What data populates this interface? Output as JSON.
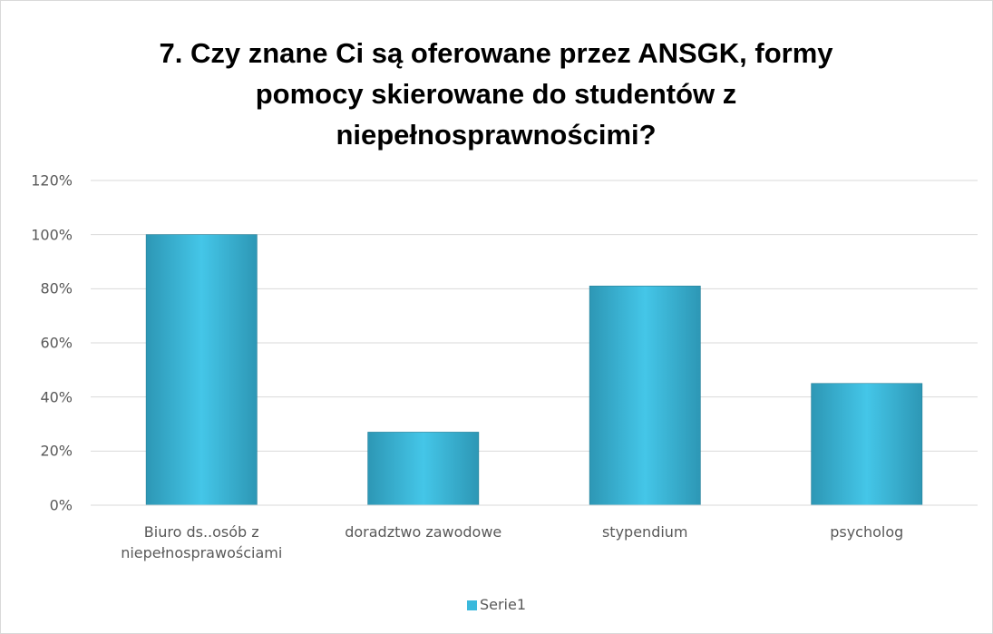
{
  "chart_data": {
    "type": "bar",
    "title": "7. Czy znane Ci są oferowane przez ANSGK, formy pomocy skierowane do studentów z niepełnosprawnościmi?",
    "categories": [
      "Biuro ds..osób z niepełnosprawościami",
      "doradztwo zawodowe",
      "stypendium",
      "psycholog"
    ],
    "series": [
      {
        "name": "Serie1",
        "color": "#3bb9dc",
        "values": [
          100,
          27,
          81,
          45
        ]
      }
    ],
    "ylim": [
      0,
      120
    ],
    "yticks": [
      {
        "value": 0,
        "label": "0%"
      },
      {
        "value": 20,
        "label": "20%"
      },
      {
        "value": 40,
        "label": "40%"
      },
      {
        "value": 60,
        "label": "60%"
      },
      {
        "value": 80,
        "label": "80%"
      },
      {
        "value": 100,
        "label": "100%"
      },
      {
        "value": 120,
        "label": "120%"
      }
    ],
    "grid": true,
    "legend": "bottom"
  }
}
